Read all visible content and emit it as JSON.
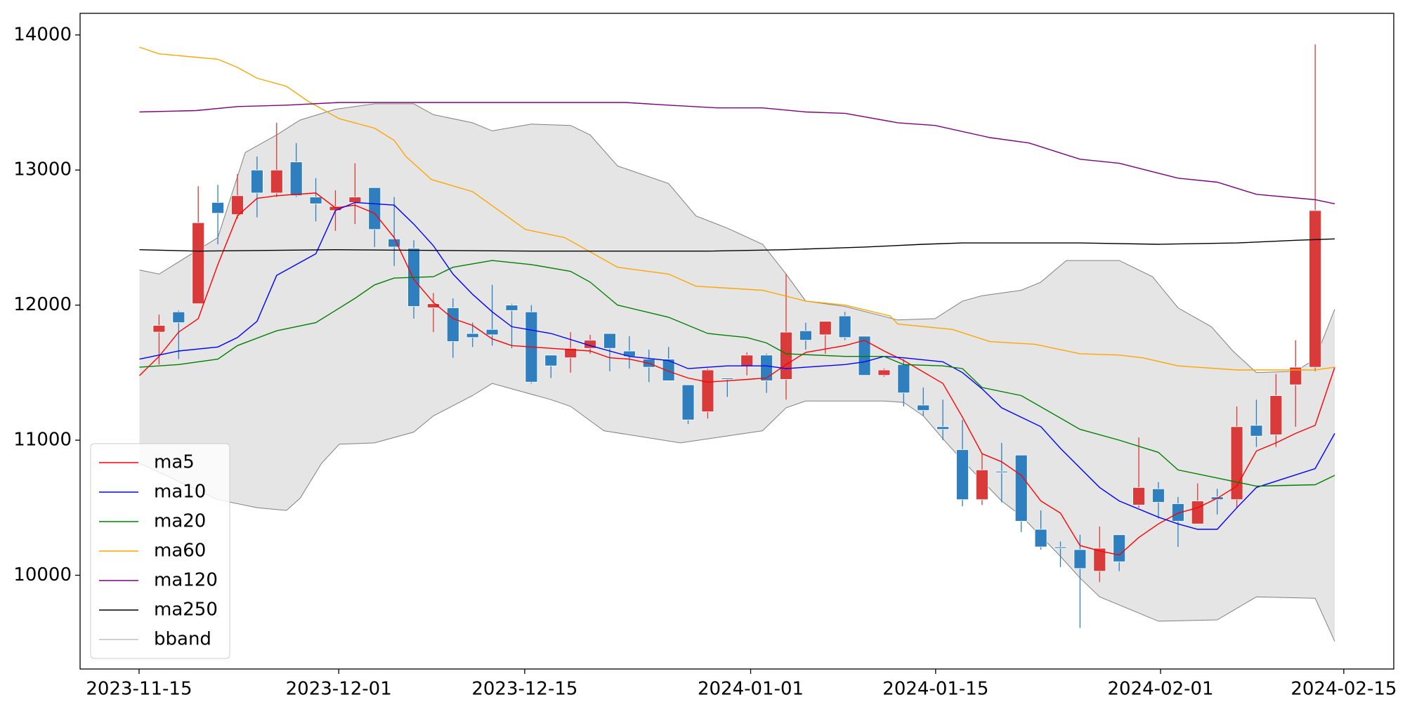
{
  "chart_data": {
    "type": "candlestick",
    "x": [
      0,
      1,
      2,
      3,
      4,
      5,
      6,
      7,
      8,
      9,
      10,
      11,
      12,
      13,
      14,
      15,
      16,
      17,
      18,
      19,
      20,
      21,
      22,
      23,
      24,
      25,
      26,
      27,
      28,
      29,
      30,
      31,
      32,
      33,
      34,
      35,
      36,
      37,
      38,
      39,
      40,
      41,
      42,
      43,
      44,
      45,
      46,
      47,
      48,
      49,
      50,
      51,
      52,
      53,
      54,
      55,
      56,
      57,
      58,
      59
    ],
    "open": [
      11800,
      11950,
      12010,
      12760,
      12670,
      13000,
      12830,
      13060,
      12800,
      12700,
      12760,
      12870,
      12490,
      12420,
      11980,
      11980,
      11790,
      11820,
      12000,
      11950,
      11630,
      11610,
      11680,
      11790,
      11660,
      11600,
      11600,
      11410,
      11210,
      11460,
      11550,
      11630,
      11450,
      11810,
      11780,
      11920,
      11770,
      11480,
      11560,
      11260,
      11100,
      10930,
      10560,
      10770,
      10890,
      10340,
      10210,
      10190,
      10030,
      10300,
      10520,
      10640,
      10530,
      10380,
      10580,
      10560,
      11110,
      11040,
      11410,
      11540
    ],
    "high": [
      11930,
      11960,
      12880,
      12890,
      12970,
      13100,
      13350,
      13200,
      12940,
      12850,
      13050,
      12870,
      12800,
      12480,
      12090,
      12050,
      11870,
      12150,
      12010,
      12000,
      11630,
      11800,
      11780,
      11790,
      11770,
      11670,
      11690,
      11410,
      11530,
      11460,
      11650,
      11640,
      12230,
      11870,
      11880,
      11950,
      11770,
      11530,
      11600,
      11390,
      11300,
      11150,
      10900,
      10980,
      10890,
      10480,
      10250,
      10300,
      10360,
      10300,
      11020,
      10690,
      10580,
      10680,
      10640,
      11250,
      11300,
      11490,
      11740,
      13930
    ],
    "low": [
      11560,
      11600,
      12010,
      12450,
      12640,
      12650,
      12800,
      12800,
      12620,
      12550,
      12600,
      12430,
      12290,
      11900,
      11800,
      11610,
      11690,
      11700,
      11680,
      11420,
      11460,
      11500,
      11640,
      11510,
      11530,
      11430,
      11440,
      11120,
      11160,
      11320,
      11480,
      11350,
      11300,
      11670,
      11640,
      11740,
      11480,
      11470,
      11250,
      11180,
      11000,
      10510,
      10520,
      10540,
      10320,
      10190,
      10060,
      9610,
      9950,
      10030,
      10500,
      10420,
      10210,
      10380,
      10450,
      10500,
      10950,
      10950,
      11100,
      11510
    ],
    "close": [
      11850,
      11870,
      12610,
      12680,
      12810,
      12830,
      13000,
      12810,
      12750,
      12730,
      12800,
      12560,
      12430,
      11990,
      12010,
      11730,
      11760,
      11780,
      11960,
      11430,
      11550,
      11680,
      11740,
      11680,
      11620,
      11540,
      11440,
      11150,
      11520,
      11450,
      11630,
      11440,
      11800,
      11740,
      11880,
      11760,
      11480,
      11520,
      11350,
      11220,
      11080,
      10560,
      10780,
      10760,
      10400,
      10210,
      10200,
      10050,
      10200,
      10100,
      10650,
      10540,
      10400,
      10550,
      10560,
      11100,
      11030,
      11330,
      11540,
      12700
    ],
    "up_color": "#d93a3a",
    "down_color": "#2f7fbf",
    "series": [
      {
        "name": "ma5",
        "color": "#ff0000",
        "x": [
          -1,
          0,
          1,
          2,
          3,
          4,
          5,
          6,
          8,
          9,
          10,
          11,
          12,
          13,
          14,
          15,
          16,
          17,
          18,
          20,
          22,
          23,
          24,
          25,
          26,
          27,
          28,
          29,
          30,
          31,
          32,
          33,
          35,
          36,
          37,
          38,
          40,
          41,
          42,
          43,
          44,
          45,
          46,
          47,
          48,
          49,
          50,
          51,
          52,
          53,
          54,
          55,
          56,
          57,
          58,
          59,
          60
        ],
        "values": [
          11478,
          11620,
          11800,
          11900,
          12300,
          12660,
          12790,
          12810,
          12830,
          12720,
          12740,
          12680,
          12500,
          12190,
          12020,
          11900,
          11850,
          11750,
          11700,
          11680,
          11660,
          11610,
          11600,
          11570,
          11510,
          11460,
          11430,
          11440,
          11450,
          11460,
          11560,
          11650,
          11700,
          11740,
          11660,
          11590,
          11420,
          11170,
          10900,
          10840,
          10740,
          10550,
          10460,
          10220,
          10180,
          10150,
          10280,
          10380,
          10460,
          10500,
          10570,
          10660,
          10920,
          10980,
          11050,
          11110,
          11540
        ]
      },
      {
        "name": "ma10",
        "color": "#0000ff",
        "x": [
          -1,
          1,
          3,
          4,
          5,
          6,
          7,
          8,
          9,
          10,
          11,
          12,
          13,
          14,
          15,
          16,
          17,
          18,
          20,
          22,
          24,
          26,
          27,
          29,
          31,
          32,
          33,
          35,
          36,
          37,
          38,
          40,
          41,
          42,
          43,
          45,
          46,
          48,
          49,
          51,
          52,
          53,
          54,
          55,
          56,
          59,
          60
        ],
        "values": [
          11600,
          11660,
          11690,
          11760,
          11880,
          12220,
          12300,
          12380,
          12700,
          12760,
          12750,
          12740,
          12600,
          12440,
          12230,
          12080,
          11950,
          11840,
          11790,
          11700,
          11620,
          11590,
          11530,
          11550,
          11550,
          11530,
          11540,
          11560,
          11580,
          11620,
          11610,
          11580,
          11500,
          11380,
          11240,
          11100,
          10940,
          10650,
          10550,
          10430,
          10380,
          10340,
          10340,
          10500,
          10650,
          10790,
          11050
        ]
      },
      {
        "name": "ma20",
        "color": "#008000",
        "x": [
          -1,
          1,
          3,
          4,
          6,
          8,
          9,
          10,
          11,
          12,
          14,
          15,
          17,
          19,
          21,
          22,
          23.4,
          26,
          28,
          30,
          31,
          32,
          35,
          37,
          38,
          40,
          41,
          42,
          44,
          47,
          49,
          51,
          52,
          54,
          56,
          59,
          60
        ],
        "values": [
          11540,
          11560,
          11600,
          11700,
          11810,
          11870,
          11960,
          12050,
          12150,
          12200,
          12210,
          12280,
          12330,
          12300,
          12250,
          12170,
          12000,
          11910,
          11790,
          11760,
          11720,
          11640,
          11620,
          11620,
          11560,
          11550,
          11530,
          11390,
          11330,
          11080,
          11000,
          10910,
          10780,
          10720,
          10660,
          10670,
          10740
        ]
      },
      {
        "name": "ma60",
        "color": "#ffa500",
        "x": [
          -1,
          0,
          3,
          4,
          5,
          6.5,
          7.6,
          9.2,
          11,
          12,
          12.6,
          13.9,
          16,
          18.7,
          20.7,
          23.4,
          26,
          27.4,
          30.8,
          33,
          35,
          37.3,
          37.7,
          40.5,
          42.4,
          44.7,
          47,
          49,
          50.2,
          52,
          55,
          57,
          59,
          60
        ],
        "values": [
          13910,
          13860,
          13820,
          13760,
          13680,
          13620,
          13510,
          13380,
          13310,
          13220,
          13100,
          12930,
          12840,
          12560,
          12500,
          12280,
          12230,
          12140,
          12110,
          12030,
          12000,
          11920,
          11860,
          11820,
          11730,
          11710,
          11640,
          11630,
          11610,
          11550,
          11520,
          11520,
          11520,
          11540
        ]
      },
      {
        "name": "ma120",
        "color": "#800080",
        "x": [
          -1,
          1.9,
          4,
          6.5,
          9.2,
          11.8,
          23.8,
          26,
          28.5,
          30.8,
          33,
          35,
          37.7,
          39.6,
          42.4,
          44.4,
          47,
          49,
          52,
          54,
          56,
          59,
          60
        ],
        "values": [
          13430,
          13440,
          13470,
          13480,
          13500,
          13500,
          13500,
          13480,
          13460,
          13460,
          13430,
          13420,
          13350,
          13330,
          13240,
          13200,
          13080,
          13050,
          12940,
          12910,
          12820,
          12780,
          12750
        ]
      },
      {
        "name": "ma250",
        "color": "#000000",
        "x": [
          -1,
          2,
          9,
          19,
          28,
          32,
          34,
          36,
          39,
          41,
          47,
          51,
          55,
          58,
          60
        ],
        "values": [
          12410,
          12400,
          12410,
          12400,
          12400,
          12410,
          12420,
          12430,
          12450,
          12460,
          12460,
          12450,
          12460,
          12480,
          12490
        ]
      }
    ],
    "band": {
      "name": "bband",
      "color": "#808080",
      "fill": "#e5e5e5",
      "upper": {
        "x": [
          -1,
          0,
          3,
          4.4,
          6,
          7.2,
          9,
          11,
          13,
          14,
          16,
          17,
          19,
          21,
          22,
          23.4,
          26,
          27.4,
          29,
          30.8,
          32,
          33,
          35,
          37.7,
          39.6,
          41,
          42,
          44,
          45,
          46.3,
          48,
          49,
          50.7,
          52,
          53.7,
          54.8,
          56,
          58,
          59,
          60
        ],
        "values": [
          12260,
          12230,
          12500,
          13130,
          13260,
          13370,
          13450,
          13490,
          13490,
          13410,
          13350,
          13290,
          13340,
          13330,
          13260,
          13030,
          12900,
          12660,
          12570,
          12450,
          12230,
          12030,
          11990,
          11890,
          11900,
          12030,
          12070,
          12110,
          12170,
          12330,
          12330,
          12330,
          12210,
          11980,
          11840,
          11660,
          11500,
          11510,
          11600,
          11970
        ]
      },
      "lower": {
        "x": [
          -1,
          3,
          5,
          6.5,
          7.2,
          8.3,
          9.2,
          11,
          13,
          14,
          16,
          17,
          18,
          20,
          21,
          22.7,
          26.6,
          30.8,
          32,
          33,
          35,
          37,
          38,
          39,
          40,
          41,
          43,
          44,
          46,
          47,
          48,
          50,
          51,
          54,
          56,
          59,
          60
        ],
        "values": [
          10830,
          10560,
          10500,
          10480,
          10570,
          10830,
          10970,
          10980,
          11060,
          11180,
          11330,
          11420,
          11380,
          11300,
          11250,
          11070,
          10980,
          11070,
          11240,
          11290,
          11290,
          11290,
          11280,
          11180,
          11010,
          10850,
          10550,
          10440,
          10140,
          9980,
          9840,
          9720,
          9660,
          9670,
          9840,
          9830,
          9510
        ]
      }
    },
    "xlim": [
      -4.03,
      63.01
    ],
    "xticks": [
      {
        "value": -1.02,
        "label": "2023-11-15"
      },
      {
        "value": 9.17,
        "label": "2023-12-01"
      },
      {
        "value": 18.66,
        "label": "2023-12-15"
      },
      {
        "value": 30.19,
        "label": "2024-01-01"
      },
      {
        "value": 39.63,
        "label": "2024-01-15"
      },
      {
        "value": 51.11,
        "label": "2024-02-01"
      },
      {
        "value": 60.46,
        "label": "2024-02-15"
      }
    ],
    "ylim": [
      9306,
      14160
    ],
    "yticks": [
      10000,
      11000,
      12000,
      13000,
      14000
    ],
    "grid": false,
    "legend": "lower left"
  }
}
